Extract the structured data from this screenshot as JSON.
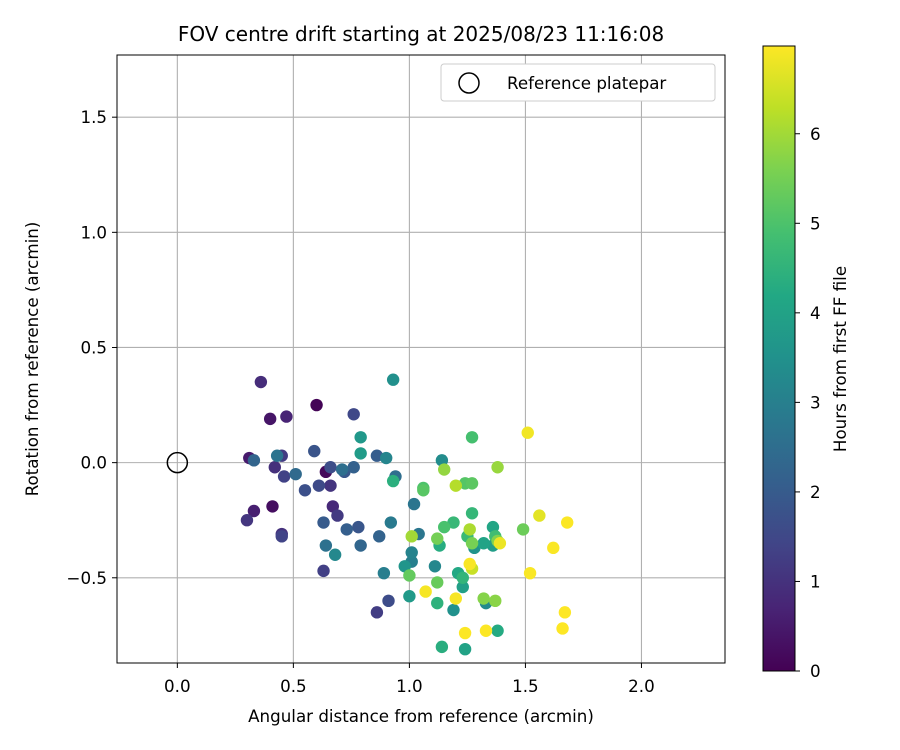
{
  "chart_data": {
    "type": "scatter",
    "title": "FOV centre drift starting at 2025/08/23 11:16:08",
    "xlabel": "Angular distance from reference (arcmin)",
    "ylabel": "Rotation from reference (arcmin)",
    "xlim": [
      -0.26,
      2.36
    ],
    "ylim": [
      -0.87,
      1.77
    ],
    "x_ticks": [
      0.0,
      0.5,
      1.0,
      1.5,
      2.0
    ],
    "x_tick_labels": [
      "0.0",
      "0.5",
      "1.0",
      "1.5",
      "2.0"
    ],
    "y_ticks": [
      -0.5,
      0.0,
      0.5,
      1.0,
      1.5
    ],
    "y_tick_labels": [
      "−0.5",
      "0.0",
      "0.5",
      "1.0",
      "1.5"
    ],
    "grid": true,
    "legend": {
      "placement": "top-right",
      "entries": [
        "Reference platepar"
      ]
    },
    "reference_point": {
      "x": 0.0,
      "y": 0.0,
      "label": "Reference platepar"
    },
    "colorbar": {
      "label": "Hours from first FF file",
      "colormap": "viridis",
      "range": [
        0,
        6.98
      ],
      "ticks": [
        0,
        1,
        2,
        3,
        4,
        5,
        6
      ],
      "tick_labels": [
        "0",
        "1",
        "2",
        "3",
        "4",
        "5",
        "6"
      ]
    },
    "points": [
      {
        "x": 0.6,
        "y": 0.25,
        "h": 0.05
      },
      {
        "x": 0.64,
        "y": -0.04,
        "h": 0.15
      },
      {
        "x": 0.41,
        "y": -0.19,
        "h": 0.25
      },
      {
        "x": 0.4,
        "y": 0.19,
        "h": 0.4
      },
      {
        "x": 0.31,
        "y": 0.02,
        "h": 0.5
      },
      {
        "x": 0.33,
        "y": -0.21,
        "h": 0.6
      },
      {
        "x": 0.47,
        "y": 0.2,
        "h": 0.7
      },
      {
        "x": 0.67,
        "y": -0.19,
        "h": 0.8
      },
      {
        "x": 0.36,
        "y": 0.35,
        "h": 0.9
      },
      {
        "x": 0.42,
        "y": -0.02,
        "h": 0.95
      },
      {
        "x": 0.45,
        "y": -0.31,
        "h": 1.0
      },
      {
        "x": 0.66,
        "y": -0.1,
        "h": 1.05
      },
      {
        "x": 0.3,
        "y": -0.25,
        "h": 1.1
      },
      {
        "x": 0.69,
        "y": -0.23,
        "h": 1.15
      },
      {
        "x": 0.45,
        "y": 0.03,
        "h": 1.2
      },
      {
        "x": 0.86,
        "y": -0.65,
        "h": 1.25
      },
      {
        "x": 0.63,
        "y": -0.47,
        "h": 1.3
      },
      {
        "x": 0.46,
        "y": -0.06,
        "h": 1.35
      },
      {
        "x": 0.45,
        "y": -0.32,
        "h": 1.4
      },
      {
        "x": 0.76,
        "y": 0.21,
        "h": 1.5
      },
      {
        "x": 0.61,
        "y": -0.1,
        "h": 1.55
      },
      {
        "x": 0.91,
        "y": -0.6,
        "h": 1.6
      },
      {
        "x": 0.66,
        "y": -0.02,
        "h": 1.65
      },
      {
        "x": 0.55,
        "y": -0.12,
        "h": 1.7
      },
      {
        "x": 0.59,
        "y": 0.05,
        "h": 1.8
      },
      {
        "x": 0.78,
        "y": -0.28,
        "h": 1.85
      },
      {
        "x": 0.72,
        "y": -0.04,
        "h": 1.9
      },
      {
        "x": 0.63,
        "y": -0.26,
        "h": 2.0
      },
      {
        "x": 0.86,
        "y": 0.03,
        "h": 2.05
      },
      {
        "x": 0.73,
        "y": -0.29,
        "h": 2.1
      },
      {
        "x": 0.76,
        "y": -0.02,
        "h": 2.15
      },
      {
        "x": 0.87,
        "y": -0.32,
        "h": 2.2
      },
      {
        "x": 0.33,
        "y": 0.01,
        "h": 2.25
      },
      {
        "x": 0.79,
        "y": -0.36,
        "h": 2.3
      },
      {
        "x": 0.51,
        "y": -0.05,
        "h": 2.4
      },
      {
        "x": 0.94,
        "y": -0.06,
        "h": 2.5
      },
      {
        "x": 0.71,
        "y": -0.03,
        "h": 2.55
      },
      {
        "x": 0.64,
        "y": -0.36,
        "h": 2.6
      },
      {
        "x": 0.43,
        "y": 0.03,
        "h": 2.65
      },
      {
        "x": 1.02,
        "y": -0.18,
        "h": 2.7
      },
      {
        "x": 1.04,
        "y": -0.31,
        "h": 2.75
      },
      {
        "x": 0.92,
        "y": -0.26,
        "h": 2.85
      },
      {
        "x": 0.89,
        "y": -0.48,
        "h": 2.95
      },
      {
        "x": 1.01,
        "y": -0.43,
        "h": 3.0
      },
      {
        "x": 1.01,
        "y": -0.39,
        "h": 3.1
      },
      {
        "x": 0.9,
        "y": 0.02,
        "h": 3.15
      },
      {
        "x": 1.11,
        "y": -0.45,
        "h": 3.2
      },
      {
        "x": 0.68,
        "y": -0.4,
        "h": 3.25
      },
      {
        "x": 1.33,
        "y": -0.61,
        "h": 3.3
      },
      {
        "x": 1.14,
        "y": 0.01,
        "h": 3.35
      },
      {
        "x": 0.93,
        "y": 0.36,
        "h": 3.45
      },
      {
        "x": 1.19,
        "y": -0.64,
        "h": 3.5
      },
      {
        "x": 1.28,
        "y": -0.37,
        "h": 3.55
      },
      {
        "x": 0.98,
        "y": -0.45,
        "h": 3.6
      },
      {
        "x": 0.79,
        "y": 0.11,
        "h": 3.7
      },
      {
        "x": 1.0,
        "y": -0.58,
        "h": 3.75
      },
      {
        "x": 0.79,
        "y": 0.04,
        "h": 3.8
      },
      {
        "x": 1.36,
        "y": -0.36,
        "h": 3.85
      },
      {
        "x": 1.23,
        "y": -0.54,
        "h": 3.9
      },
      {
        "x": 1.24,
        "y": -0.81,
        "h": 4.0
      },
      {
        "x": 1.32,
        "y": -0.35,
        "h": 4.05
      },
      {
        "x": 1.36,
        "y": -0.28,
        "h": 4.1
      },
      {
        "x": 1.21,
        "y": -0.48,
        "h": 4.2
      },
      {
        "x": 1.38,
        "y": -0.73,
        "h": 4.25
      },
      {
        "x": 1.13,
        "y": -0.36,
        "h": 4.3
      },
      {
        "x": 1.14,
        "y": -0.8,
        "h": 4.35
      },
      {
        "x": 0.93,
        "y": -0.08,
        "h": 4.4
      },
      {
        "x": 1.12,
        "y": -0.61,
        "h": 4.45
      },
      {
        "x": 1.23,
        "y": -0.5,
        "h": 4.55
      },
      {
        "x": 1.27,
        "y": -0.22,
        "h": 4.6
      },
      {
        "x": 1.19,
        "y": -0.26,
        "h": 4.65
      },
      {
        "x": 1.25,
        "y": -0.32,
        "h": 4.7
      },
      {
        "x": 1.37,
        "y": -0.32,
        "h": 4.8
      },
      {
        "x": 1.27,
        "y": 0.11,
        "h": 4.9
      },
      {
        "x": 1.15,
        "y": -0.28,
        "h": 4.95
      },
      {
        "x": 1.06,
        "y": -0.11,
        "h": 5.0
      },
      {
        "x": 1.24,
        "y": -0.09,
        "h": 5.1
      },
      {
        "x": 1.06,
        "y": -0.12,
        "h": 5.15
      },
      {
        "x": 1.27,
        "y": -0.09,
        "h": 5.2
      },
      {
        "x": 1.0,
        "y": -0.49,
        "h": 5.3
      },
      {
        "x": 1.12,
        "y": -0.52,
        "h": 5.35
      },
      {
        "x": 1.49,
        "y": -0.29,
        "h": 5.4
      },
      {
        "x": 1.12,
        "y": -0.33,
        "h": 5.5
      },
      {
        "x": 1.27,
        "y": -0.35,
        "h": 5.55
      },
      {
        "x": 1.38,
        "y": -0.34,
        "h": 5.65
      },
      {
        "x": 1.32,
        "y": -0.59,
        "h": 5.7
      },
      {
        "x": 1.37,
        "y": -0.6,
        "h": 5.75
      },
      {
        "x": 1.15,
        "y": -0.03,
        "h": 5.85
      },
      {
        "x": 1.38,
        "y": -0.02,
        "h": 5.9
      },
      {
        "x": 1.01,
        "y": -0.32,
        "h": 6.0
      },
      {
        "x": 1.26,
        "y": -0.29,
        "h": 6.1
      },
      {
        "x": 1.2,
        "y": -0.1,
        "h": 6.2
      },
      {
        "x": 1.27,
        "y": -0.46,
        "h": 6.4
      },
      {
        "x": 1.56,
        "y": -0.23,
        "h": 6.7
      },
      {
        "x": 1.39,
        "y": -0.35,
        "h": 6.8
      },
      {
        "x": 1.51,
        "y": 0.13,
        "h": 6.85
      },
      {
        "x": 1.07,
        "y": -0.56,
        "h": 6.9
      },
      {
        "x": 1.2,
        "y": -0.59,
        "h": 6.92
      },
      {
        "x": 1.26,
        "y": -0.44,
        "h": 6.93
      },
      {
        "x": 1.52,
        "y": -0.48,
        "h": 6.94
      },
      {
        "x": 1.62,
        "y": -0.37,
        "h": 6.95
      },
      {
        "x": 1.68,
        "y": -0.26,
        "h": 6.96
      },
      {
        "x": 1.24,
        "y": -0.74,
        "h": 6.97
      },
      {
        "x": 1.33,
        "y": -0.73,
        "h": 6.97
      },
      {
        "x": 1.67,
        "y": -0.65,
        "h": 6.98
      },
      {
        "x": 1.66,
        "y": -0.72,
        "h": 6.98
      }
    ]
  }
}
